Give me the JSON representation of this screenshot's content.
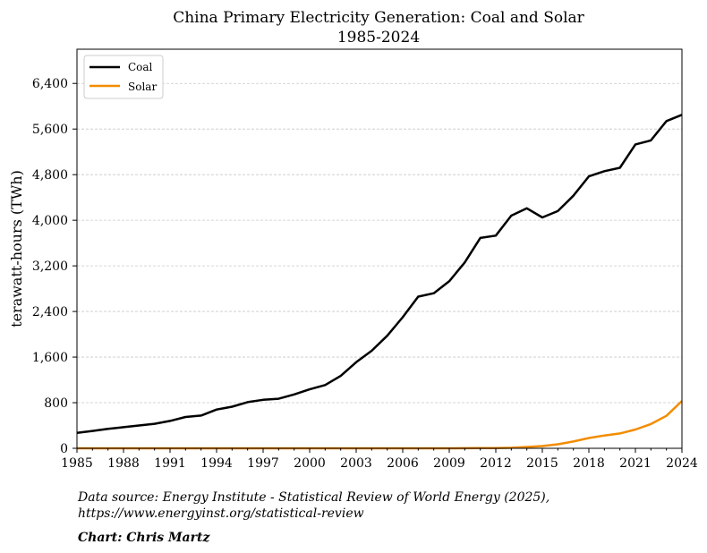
{
  "chart_data": {
    "type": "line",
    "title": "China Primary Electricity Generation: Coal and Solar",
    "subtitle": "1985-2024",
    "xlabel": "",
    "ylabel": "terawatt-hours (TWh)",
    "xlim": [
      1985,
      2024
    ],
    "ylim": [
      0,
      7000
    ],
    "x_ticks": [
      1985,
      1988,
      1991,
      1994,
      1997,
      2000,
      2003,
      2006,
      2009,
      2012,
      2015,
      2018,
      2021,
      2024
    ],
    "y_ticks": [
      0,
      800,
      1600,
      2400,
      3200,
      4000,
      4800,
      5600,
      6400
    ],
    "y_tick_labels": [
      "0",
      "800",
      "1,600",
      "2,400",
      "3,200",
      "4,000",
      "4,800",
      "5,600",
      "6,400"
    ],
    "grid": "horizontal dashed",
    "legend_position": "top-left",
    "x": [
      1985,
      1986,
      1987,
      1988,
      1989,
      1990,
      1991,
      1992,
      1993,
      1994,
      1995,
      1996,
      1997,
      1998,
      1999,
      2000,
      2001,
      2002,
      2003,
      2004,
      2005,
      2006,
      2007,
      2008,
      2009,
      2010,
      2011,
      2012,
      2013,
      2014,
      2015,
      2016,
      2017,
      2018,
      2019,
      2020,
      2021,
      2022,
      2023,
      2024
    ],
    "series": [
      {
        "name": "Coal",
        "color": "#000000",
        "values": [
          270,
          305,
          340,
          370,
          400,
          430,
          480,
          550,
          575,
          680,
          730,
          810,
          850,
          870,
          945,
          1035,
          1110,
          1270,
          1510,
          1710,
          1975,
          2300,
          2660,
          2720,
          2930,
          3260,
          3690,
          3730,
          4080,
          4210,
          4050,
          4160,
          4430,
          4770,
          4860,
          4920,
          5330,
          5400,
          5740,
          5850
        ]
      },
      {
        "name": "Solar",
        "color": "#f28c00",
        "values": [
          0,
          0,
          0,
          0,
          0,
          0,
          0,
          0,
          0,
          0,
          0,
          0,
          0,
          0,
          0,
          0,
          0,
          0,
          0,
          0,
          0,
          0,
          0,
          0,
          0,
          1,
          3,
          4,
          9,
          24,
          40,
          70,
          120,
          180,
          225,
          260,
          330,
          425,
          570,
          830
        ]
      }
    ]
  },
  "footer": {
    "source_line1": "Data source: Energy Institute - Statistical Review of World Energy (2025),",
    "source_line2": "https://www.energyinst.org/statistical-review",
    "credit": "Chart: Chris Martz"
  }
}
